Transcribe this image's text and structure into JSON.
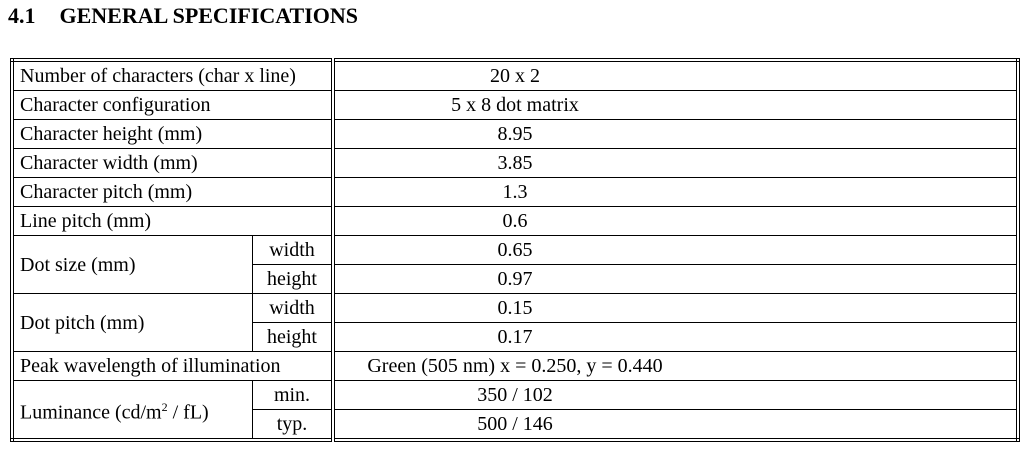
{
  "header": {
    "number": "4.1",
    "title": "GENERAL SPECIFICATIONS"
  },
  "table": {
    "rows": [
      {
        "label": "Number of characters (char x line)",
        "value": "20 x 2"
      },
      {
        "label": "Character configuration",
        "value": "5 x 8 dot matrix"
      },
      {
        "label": "Character height (mm)",
        "value": "8.95"
      },
      {
        "label": "Character width (mm)",
        "value": "3.85"
      },
      {
        "label": "Character pitch (mm)",
        "value": "1.3"
      },
      {
        "label": "Line pitch (mm)",
        "value": "0.6"
      },
      {
        "label": "Dot size (mm)",
        "sub": [
          {
            "label": "width",
            "value": "0.65"
          },
          {
            "label": "height",
            "value": "0.97"
          }
        ]
      },
      {
        "label": "Dot pitch (mm)",
        "sub": [
          {
            "label": "width",
            "value": "0.15"
          },
          {
            "label": "height",
            "value": "0.17"
          }
        ]
      },
      {
        "label": "Peak wavelength of illumination",
        "value": "Green (505 nm) x = 0.250, y = 0.440"
      },
      {
        "label": "Luminance (cd/m",
        "label_sup": "2",
        "label_rest": " / fL)",
        "sub": [
          {
            "label": "min.",
            "value": "350 / 102"
          },
          {
            "label": "typ.",
            "value": "500 / 146"
          }
        ]
      }
    ]
  }
}
